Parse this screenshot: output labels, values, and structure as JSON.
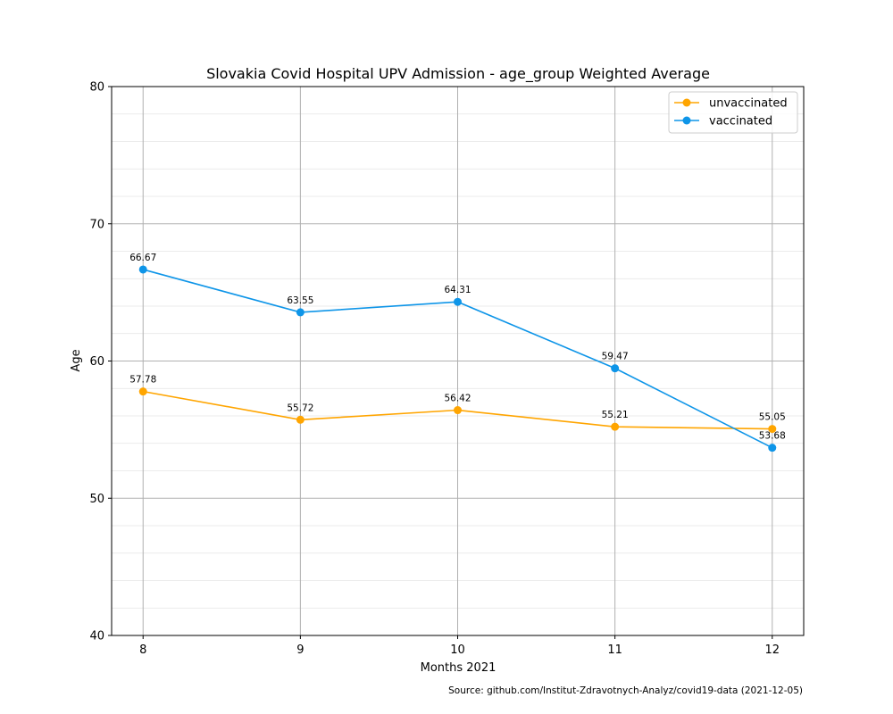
{
  "chart_data": {
    "type": "line",
    "title": "Slovakia Covid Hospital UPV Admission - age_group Weighted Average",
    "xlabel": "Months 2021",
    "ylabel": "Age",
    "x": [
      8,
      9,
      10,
      11,
      12
    ],
    "xlim": [
      7.8,
      12.2
    ],
    "ylim": [
      40,
      80
    ],
    "y_ticks": [
      40,
      50,
      60,
      70,
      80
    ],
    "y_minor_step": 2,
    "grid": true,
    "legend_position": "top-right",
    "series": [
      {
        "name": "unvaccinated",
        "color": "#FFA500",
        "values": [
          57.78,
          55.72,
          56.42,
          55.21,
          55.05
        ],
        "labels": [
          "57.78",
          "55.72",
          "56.42",
          "55.21",
          "55.05"
        ]
      },
      {
        "name": "vaccinated",
        "color": "#0E95E8",
        "values": [
          66.67,
          63.55,
          64.31,
          59.47,
          53.68
        ],
        "labels": [
          "66.67",
          "63.55",
          "64.31",
          "59.47",
          "53.68"
        ]
      }
    ],
    "source": "Source: github.com/Institut-Zdravotnych-Analyz/covid19-data (2021-12-05)"
  }
}
